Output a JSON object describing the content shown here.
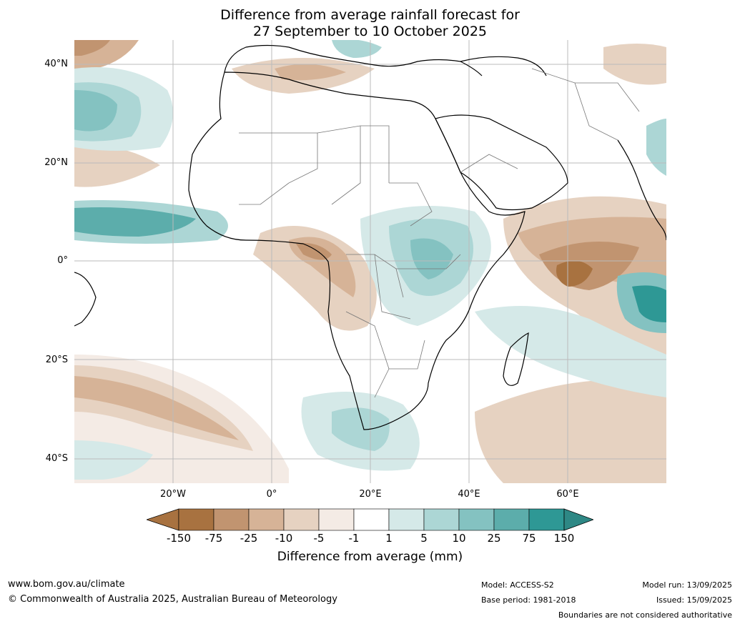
{
  "header": {
    "title_line1": "Difference from average rainfall forecast for",
    "title_line2": "27 September to 10 October 2025"
  },
  "map": {
    "lat_labels": [
      "40°N",
      "20°N",
      "0°",
      "20°S",
      "40°S"
    ],
    "lon_labels": [
      "20°W",
      "0°",
      "20°E",
      "40°E",
      "60°E"
    ]
  },
  "legend": {
    "title": "Difference from average (mm)",
    "ticks": [
      "-150",
      "-75",
      "-25",
      "-10",
      "-5",
      "-1",
      "1",
      "5",
      "10",
      "25",
      "75",
      "150"
    ],
    "colors": [
      "#a87240",
      "#c19470",
      "#d6b397",
      "#e6d2c1",
      "#f4ebe5",
      "#ffffff",
      "#d5e9e8",
      "#acd6d5",
      "#84c2c1",
      "#5cadab",
      "#2e9895"
    ],
    "under_color": "#a87240",
    "over_color": "#2e8885"
  },
  "footer": {
    "website": "www.bom.gov.au/climate",
    "copyright": "© Commonwealth of Australia 2025, Australian Bureau of Meteorology",
    "model": "Model: ACCESS-S2",
    "base_period": "Base period: 1981-2018",
    "model_run": "Model run: 13/09/2025",
    "issued": "Issued: 15/09/2025",
    "disclaimer": "Boundaries are not considered authoritative"
  }
}
